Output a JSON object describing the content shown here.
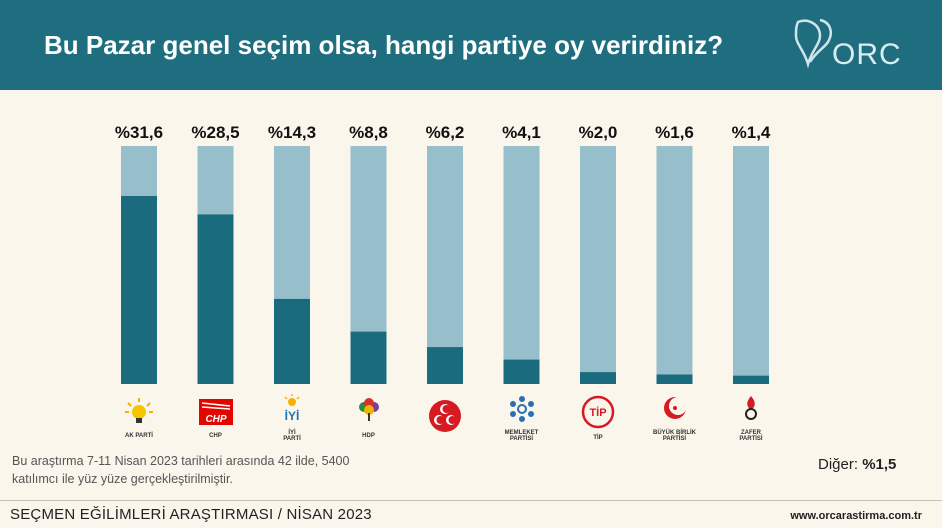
{
  "header": {
    "title": "Bu Pazar genel seçim olsa, hangi partiye oy verirdiniz?",
    "logo_text": "ORC"
  },
  "colors": {
    "header_bg": "#1f6e80",
    "bar_bg": "#96bfcb",
    "bar_fill": "#1b6b7f",
    "page_bg": "#fbf6ec"
  },
  "chart_data": {
    "type": "bar",
    "categories": [
      "AK PARTİ",
      "CHP",
      "İYİ PARTİ",
      "HDP",
      "MHP",
      "MEMLEKET PARTİSİ",
      "TİP",
      "BÜYÜK BİRLİK PARTİSİ",
      "ZAFER PARTİSİ"
    ],
    "values": [
      31.6,
      28.5,
      14.3,
      8.8,
      6.2,
      4.1,
      2.0,
      1.6,
      1.4
    ],
    "data_labels": [
      "%31,6",
      "%28,5",
      "%14,3",
      "%8,8",
      "%6,2",
      "%4,1",
      "%2,0",
      "%1,6",
      "%1,4"
    ],
    "title": "Bu Pazar genel seçim olsa, hangi partiye oy verirdiniz?",
    "xlabel": "",
    "ylabel": "",
    "grid": false
  },
  "parties": [
    {
      "icon": "ak-parti-lightbulb-icon",
      "label": "AK PARTİ"
    },
    {
      "icon": "chp-logo-icon",
      "label": "CHP"
    },
    {
      "icon": "iyi-parti-sun-icon",
      "label": "İYİ",
      "sub": "PARTİ"
    },
    {
      "icon": "hdp-tree-icon",
      "label": "HDP"
    },
    {
      "icon": "mhp-crescents-icon",
      "label": ""
    },
    {
      "icon": "memleket-flower-icon",
      "label": "MEMLEKET",
      "sub": "PARTİSİ"
    },
    {
      "icon": "tip-emblem-icon",
      "label": "TİP"
    },
    {
      "icon": "bbp-crescent-icon",
      "label": "BÜYÜK BİRLİK",
      "sub": "PARTİSİ"
    },
    {
      "icon": "zafer-torch-icon",
      "label": "ZAFER",
      "sub": "PARTİSİ"
    }
  ],
  "note": "Bu araştırma 7-11 Nisan 2023 tarihleri arasında 42 ilde, 5400 katılımcı ile yüz yüze gerçekleştirilmiştir.",
  "other": {
    "label": "Diğer:",
    "value": "%1,5"
  },
  "footer": {
    "left": "SEÇMEN EĞİLİMLERİ ARAŞTIRMASI / NİSAN 2023",
    "right": "www.orcarastirma.com.tr"
  }
}
